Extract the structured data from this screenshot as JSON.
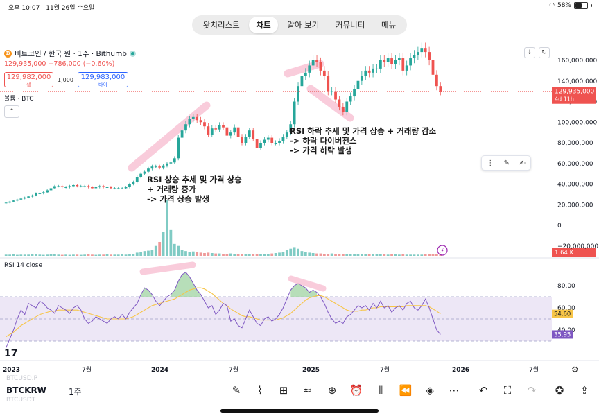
{
  "status_bar": {
    "time": "오후 10:07",
    "date": "11월 26일 수요일",
    "battery": "58%",
    "battery_level": 0.58
  },
  "top_nav": {
    "tabs": [
      {
        "label": "왓치리스트",
        "active": false
      },
      {
        "label": "차트",
        "active": true
      },
      {
        "label": "알아 보기",
        "active": false
      },
      {
        "label": "커뮤니티",
        "active": false
      },
      {
        "label": "메뉴",
        "active": false
      }
    ]
  },
  "chart_header": {
    "symbol": "비트코인 / 한국 원 · 1주 · Bithumb",
    "price_line": "129,935,000  −786,000 (−0.60%)",
    "bid": {
      "price": "129,982,000",
      "label": "셀"
    },
    "spread": "1,000",
    "ask": {
      "price": "129,983,000",
      "label": "바이"
    },
    "volume_label": "볼륨 · BTC",
    "rsi_label": "RSI 14 close"
  },
  "annotations": {
    "left": [
      "RSI 상승 추세 및 가격 상승",
      "+ 거래량 증가",
      "-> 가격 상승 발생"
    ],
    "right": [
      "RSI 하락 추세 및 가격 상승 + 거래량 감소",
      "-> 하락 다이버전스",
      "-> 가격 하락 발생"
    ]
  },
  "chart_data": {
    "type": "candlestick",
    "interval": "1주",
    "price_axis": {
      "labels": [
        "160,000,000",
        "140,000,000",
        "120,000,000",
        "100,000,000",
        "80,000,000",
        "60,000,000",
        "40,000,000",
        "20,000,000",
        "0",
        "−20,000,000"
      ],
      "ylim": [
        -20000000,
        170000000
      ]
    },
    "last_price_badge": {
      "price": "129,935,000",
      "countdown": "4d 11h",
      "value": 129935000
    },
    "volume_badge": "1.64 K",
    "rsi_axis": {
      "labels": [
        "80.00",
        "60.00",
        "40.00"
      ],
      "band": [
        30,
        70
      ],
      "ylim": [
        20,
        95
      ]
    },
    "rsi_badges": [
      {
        "label": "54.60",
        "value": 54.6,
        "series": "ma"
      },
      {
        "label": "35.95",
        "value": 35.95,
        "series": "rsi"
      }
    ],
    "x_ticks": [
      "2023",
      "7월",
      "2024",
      "7월",
      "2025",
      "7월",
      "2026",
      "7월"
    ],
    "weekly_close": [
      22,
      23,
      24,
      25,
      26,
      27,
      28,
      29,
      31,
      31,
      32,
      34,
      36,
      38,
      38,
      37,
      37,
      38,
      39,
      38,
      38,
      38,
      37,
      36,
      37,
      38,
      37,
      37,
      36,
      36,
      36,
      36,
      37,
      40,
      42,
      47,
      50,
      52,
      55,
      57,
      57,
      56,
      58,
      60,
      61,
      65,
      85,
      92,
      98,
      103,
      105,
      102,
      100,
      96,
      88,
      94,
      93,
      97,
      95,
      87,
      90,
      95,
      86,
      80,
      86,
      92,
      84,
      75,
      80,
      83,
      85,
      80,
      80,
      82,
      86,
      90,
      98,
      120,
      135,
      145,
      148,
      155,
      160,
      158,
      150,
      145,
      130,
      130,
      122,
      115,
      110,
      120,
      125,
      132,
      140,
      145,
      150,
      148,
      152,
      152,
      160,
      158,
      162,
      156,
      160,
      162,
      150,
      155,
      162,
      165,
      168,
      172,
      168,
      160,
      146,
      135,
      130
    ],
    "weekly_volume": [
      0.3,
      0.3,
      0.35,
      0.25,
      0.3,
      0.3,
      0.3,
      0.4,
      0.35,
      0.3,
      0.25,
      0.3,
      0.35,
      0.4,
      0.3,
      0.25,
      0.3,
      0.25,
      0.3,
      0.3,
      0.25,
      0.3,
      0.35,
      0.3,
      0.25,
      0.3,
      0.3,
      0.35,
      0.3,
      0.3,
      0.3,
      0.35,
      0.3,
      0.4,
      0.5,
      0.8,
      1.0,
      1.2,
      1.3,
      1.5,
      2.5,
      3.5,
      6.0,
      14.0,
      6.5,
      3.0,
      2.5,
      1.5,
      1.2,
      1.0,
      1.1,
      0.9,
      0.8,
      0.7,
      0.8,
      0.7,
      0.6,
      0.6,
      0.5,
      0.5,
      0.6,
      0.5,
      0.5,
      0.5,
      0.5,
      0.5,
      0.5,
      0.45,
      0.5,
      0.45,
      0.5,
      0.6,
      0.7,
      0.8,
      1.0,
      1.4,
      1.8,
      2.2,
      1.8,
      1.2,
      1.0,
      0.8,
      0.7,
      0.6,
      0.6,
      0.5,
      0.5,
      0.6,
      0.5,
      0.5,
      0.5,
      0.4,
      0.4,
      0.4,
      0.4,
      0.4,
      0.35,
      0.4,
      0.35,
      0.35,
      0.35,
      0.35,
      0.3,
      0.35,
      0.35,
      0.3,
      0.35,
      0.3,
      0.3,
      0.3,
      0.3,
      0.3,
      0.35,
      0.4,
      0.4,
      0.5,
      1.0
    ],
    "rsi": [
      24,
      32,
      40,
      50,
      58,
      54,
      64,
      62,
      60,
      66,
      64,
      60,
      58,
      55,
      62,
      60,
      58,
      55,
      60,
      62,
      58,
      50,
      46,
      48,
      52,
      50,
      48,
      46,
      50,
      52,
      50,
      54,
      50,
      56,
      60,
      64,
      72,
      78,
      76,
      72,
      66,
      62,
      66,
      70,
      72,
      76,
      84,
      90,
      92,
      88,
      82,
      76,
      72,
      66,
      60,
      62,
      54,
      58,
      64,
      62,
      48,
      50,
      44,
      42,
      50,
      58,
      52,
      46,
      44,
      50,
      52,
      48,
      50,
      54,
      60,
      68,
      76,
      80,
      82,
      80,
      78,
      74,
      76,
      74,
      70,
      64,
      56,
      50,
      46,
      48,
      46,
      52,
      54,
      58,
      62,
      60,
      62,
      58,
      64,
      60,
      66,
      60,
      62,
      56,
      60,
      62,
      58,
      64,
      66,
      60,
      58,
      62,
      68,
      60,
      50,
      40,
      36
    ],
    "rsi_ma": [
      34,
      36,
      38,
      41,
      44,
      46,
      48,
      50,
      52,
      54,
      55,
      56,
      57,
      57,
      58,
      58,
      58,
      58,
      58,
      58,
      57,
      56,
      55,
      54,
      53,
      52,
      51,
      50,
      50,
      50,
      50,
      50,
      50,
      51,
      52,
      54,
      56,
      58,
      60,
      62,
      63,
      64,
      65,
      66,
      67,
      68,
      70,
      72,
      74,
      76,
      77,
      78,
      78,
      77,
      75,
      73,
      70,
      67,
      64,
      62,
      59,
      57,
      55,
      53,
      52,
      52,
      51,
      50,
      49,
      49,
      49,
      49,
      49,
      50,
      51,
      53,
      55,
      58,
      61,
      64,
      67,
      69,
      70,
      71,
      71,
      70,
      68,
      66,
      64,
      62,
      60,
      58,
      57,
      57,
      57,
      58,
      58,
      59,
      60,
      60,
      61,
      61,
      61,
      61,
      61,
      61,
      61,
      62,
      62,
      62,
      62,
      62,
      62,
      61,
      59,
      57,
      54.6
    ]
  },
  "toolbar": {
    "ticker": "BTCKRW",
    "interval": "1주",
    "ghost_symbols": [
      "BTCUSD.P",
      "BTCUSDT"
    ],
    "icons": [
      "pen-icon",
      "indicators-icon",
      "templates-icon",
      "drawings-icon",
      "add-icon",
      "alert-icon",
      "candle-type-icon",
      "replay-icon",
      "layers-icon",
      "more-icon",
      "undo-icon",
      "fullscreen-icon",
      "redo-icon",
      "idea-icon",
      "share-icon"
    ]
  },
  "colors": {
    "up": "#26a69a",
    "down": "#ef5350",
    "rsi_line": "#7e57c2",
    "rsi_ma": "#f7c548",
    "rsi_band": "#ede7f6",
    "highlight": "#f8bbd0"
  }
}
